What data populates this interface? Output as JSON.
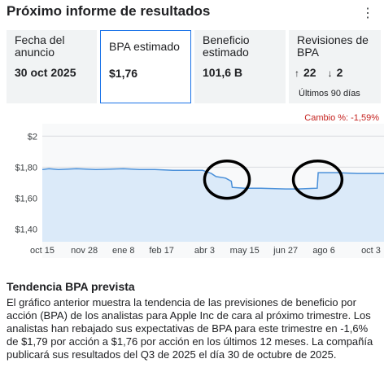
{
  "section_title": "Próximo informe de resultados",
  "more_icon": "vertical-ellipsis-icon",
  "cards": {
    "date": {
      "label": "Fecha del anuncio",
      "value": "30 oct 2025"
    },
    "eps": {
      "label": "BPA estimado",
      "value": "$1,76"
    },
    "revenue": {
      "label": "Beneficio estimado",
      "value": "101,6 B"
    },
    "revisions": {
      "label": "Revisiones de BPA",
      "up": "22",
      "down": "2",
      "up_icon": "arrow-up-icon",
      "down_icon": "arrow-down-icon",
      "period": "Últimos 90 días"
    }
  },
  "change": {
    "label": "Cambio %:",
    "value": "-1,59%"
  },
  "chart_data": {
    "type": "area",
    "y_ticks": [
      "$2",
      "$1,80",
      "$1,60",
      "$1,40"
    ],
    "y_tick_values": [
      2.0,
      1.8,
      1.6,
      1.4
    ],
    "ylim": [
      1.32,
      2.08
    ],
    "x_ticks": [
      "oct 15",
      "nov 28",
      "ene 8",
      "feb 17",
      "abr 3",
      "may 15",
      "jun 27",
      "ago 6",
      "oct 3"
    ],
    "x_tick_dates": [
      "2024-10-15",
      "2024-11-28",
      "2025-01-08",
      "2025-02-17",
      "2025-04-03",
      "2025-05-15",
      "2025-06-27",
      "2025-08-06",
      "2025-10-03"
    ],
    "grid": "horizontal",
    "line_color": "#4a90d9",
    "fill_color": "#dbeaf9",
    "series": [
      {
        "x": [
          "2024-10-15",
          "2024-10-22",
          "2024-11-01",
          "2024-11-20",
          "2024-12-10",
          "2025-01-08",
          "2025-01-25",
          "2025-02-10",
          "2025-03-01",
          "2025-03-20",
          "2025-04-01",
          "2025-04-10",
          "2025-04-15",
          "2025-04-25",
          "2025-05-01",
          "2025-05-02",
          "2025-05-15",
          "2025-06-01",
          "2025-06-27",
          "2025-07-10",
          "2025-07-30",
          "2025-07-31",
          "2025-08-20",
          "2025-09-10",
          "2025-10-08"
        ],
        "y": [
          1.785,
          1.79,
          1.785,
          1.79,
          1.785,
          1.79,
          1.785,
          1.785,
          1.78,
          1.78,
          1.78,
          1.76,
          1.74,
          1.73,
          1.71,
          1.67,
          1.665,
          1.665,
          1.66,
          1.66,
          1.665,
          1.765,
          1.765,
          1.76,
          1.76
        ]
      }
    ],
    "annotations": [
      {
        "shape": "ellipse",
        "x_from": "2025-04-03",
        "x_to": "2025-05-20",
        "y_from": 1.6,
        "y_to": 1.84,
        "color": "#000000"
      },
      {
        "shape": "ellipse",
        "x_from": "2025-07-05",
        "x_to": "2025-08-25",
        "y_from": 1.6,
        "y_to": 1.84,
        "color": "#000000"
      }
    ]
  },
  "description": {
    "title": "Tendencia BPA prevista",
    "text": "El gráfico anterior muestra la tendencia de las previsiones de beneficio por acción (BPA) de los analistas para Apple Inc de cara al próximo trimestre. Los analistas han rebajado sus expectativas de BPA para este trimestre en -1,6% de $1,79 por acción a $1,76 por acción en los últimos 12 meses. La compañía publicará sus resultados del Q3 de 2025 el día 30 de octubre de 2025."
  }
}
